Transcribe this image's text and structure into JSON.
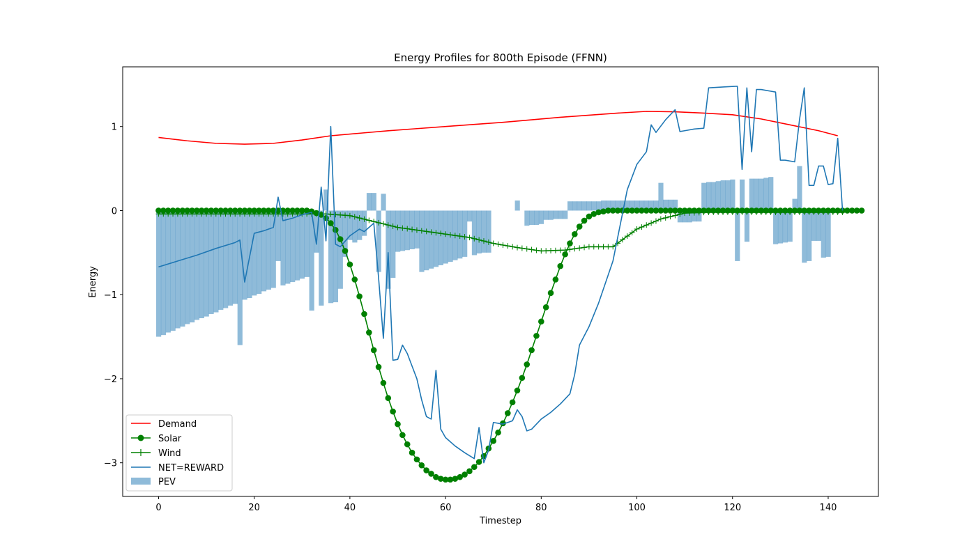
{
  "chart_data": {
    "type": "line",
    "title": "Energy Profiles for 800th Episode (FFNN)",
    "xlabel": "Timestep",
    "ylabel": "Energy",
    "xlim": [
      -7.5,
      150.5
    ],
    "ylim": [
      -3.4,
      1.71
    ],
    "xticks": [
      0,
      20,
      40,
      60,
      80,
      100,
      120,
      140
    ],
    "yticks": [
      -3,
      -2,
      -1,
      0,
      1
    ],
    "ytick_labels": [
      "−3",
      "−2",
      "−1",
      "0",
      "1"
    ],
    "grid": false,
    "legend_position": "lower left",
    "colors": {
      "Demand": "#ff0000",
      "Solar": "#008000",
      "Wind": "#008000",
      "NET=REWARD": "#1f77b4",
      "PEV": "#1f77b4"
    },
    "series": [
      {
        "name": "Demand",
        "kind": "line",
        "x": [
          0,
          6,
          12,
          18,
          24,
          30,
          36,
          42,
          48,
          54,
          60,
          66,
          72,
          78,
          84,
          90,
          96,
          102,
          108,
          114,
          120,
          126,
          132,
          138,
          142
        ],
        "values": [
          0.87,
          0.83,
          0.8,
          0.79,
          0.8,
          0.84,
          0.89,
          0.92,
          0.95,
          0.975,
          1.0,
          1.025,
          1.05,
          1.08,
          1.11,
          1.135,
          1.16,
          1.18,
          1.175,
          1.16,
          1.14,
          1.09,
          1.02,
          0.95,
          0.89
        ]
      },
      {
        "name": "Solar",
        "kind": "line-marker-circle",
        "x_start": 0,
        "x_end": 143,
        "values": [
          0,
          0,
          0,
          0,
          0,
          0,
          0,
          0,
          0,
          0,
          0,
          0,
          0,
          0,
          0,
          0,
          0,
          0,
          0,
          0,
          0,
          0,
          0,
          0,
          0,
          0,
          0,
          0,
          0,
          0,
          0,
          0,
          -0.01,
          -0.03,
          -0.05,
          -0.09,
          -0.15,
          -0.23,
          -0.34,
          -0.48,
          -0.64,
          -0.82,
          -1.02,
          -1.23,
          -1.45,
          -1.66,
          -1.86,
          -2.05,
          -2.23,
          -2.39,
          -2.54,
          -2.67,
          -2.78,
          -2.88,
          -2.96,
          -3.03,
          -3.09,
          -3.13,
          -3.17,
          -3.19,
          -3.2,
          -3.2,
          -3.19,
          -3.17,
          -3.14,
          -3.1,
          -3.05,
          -2.99,
          -2.92,
          -2.83,
          -2.74,
          -2.64,
          -2.53,
          -2.41,
          -2.28,
          -2.14,
          -1.99,
          -1.83,
          -1.66,
          -1.49,
          -1.32,
          -1.15,
          -0.98,
          -0.82,
          -0.66,
          -0.52,
          -0.39,
          -0.28,
          -0.19,
          -0.12,
          -0.07,
          -0.04,
          -0.02,
          -0.01,
          0,
          0,
          0,
          0,
          0,
          0,
          0,
          0,
          0,
          0,
          0,
          0,
          0,
          0,
          0,
          0,
          0,
          0,
          0,
          0,
          0,
          0,
          0,
          0,
          0,
          0,
          0,
          0,
          0,
          0,
          0,
          0,
          0,
          0,
          0,
          0,
          0,
          0,
          0,
          0,
          0,
          0,
          0,
          0,
          0,
          0,
          0,
          0,
          0,
          0,
          0,
          0,
          0,
          0
        ]
      },
      {
        "name": "Wind",
        "kind": "line-marker-plus",
        "x": [
          0,
          10,
          20,
          30,
          35,
          40,
          45,
          50,
          55,
          60,
          65,
          70,
          75,
          80,
          85,
          90,
          95,
          100,
          105,
          110,
          115,
          143
        ],
        "values": [
          -0.04,
          -0.04,
          -0.04,
          -0.04,
          -0.04,
          -0.06,
          -0.13,
          -0.2,
          -0.24,
          -0.28,
          -0.32,
          -0.39,
          -0.44,
          -0.48,
          -0.47,
          -0.43,
          -0.43,
          -0.22,
          -0.1,
          -0.03,
          -0.02,
          -0.02
        ]
      },
      {
        "name": "NET=REWARD",
        "kind": "line",
        "x": [
          0,
          4,
          8,
          12,
          16,
          17,
          18,
          20,
          22,
          24,
          25,
          26,
          28,
          30,
          32,
          33,
          34,
          35,
          36,
          37,
          38,
          40,
          42,
          43,
          44,
          45,
          46,
          47,
          48,
          49,
          50,
          51,
          52,
          53,
          54,
          55,
          56,
          57,
          58,
          59,
          60,
          62,
          64,
          66,
          67,
          68,
          69,
          70,
          71,
          72,
          73,
          74,
          75,
          76,
          77,
          78,
          80,
          82,
          84,
          86,
          87,
          88,
          90,
          92,
          95,
          98,
          100,
          102,
          103,
          104,
          106,
          108,
          109,
          110,
          112,
          114,
          115,
          118,
          121,
          122,
          123,
          124,
          125,
          126,
          127,
          128,
          129,
          130,
          131,
          132,
          133,
          134,
          135,
          136,
          137,
          138,
          139,
          140,
          141,
          142,
          143
        ],
        "values": [
          -0.67,
          -0.6,
          -0.53,
          -0.45,
          -0.38,
          -0.35,
          -0.85,
          -0.27,
          -0.24,
          -0.2,
          0.16,
          -0.12,
          -0.09,
          -0.05,
          -0.02,
          -0.4,
          0.28,
          -0.36,
          1.0,
          -0.4,
          -0.43,
          -0.3,
          -0.22,
          -0.25,
          -0.2,
          -0.15,
          -0.8,
          -1.52,
          -0.5,
          -1.78,
          -1.77,
          -1.6,
          -1.7,
          -1.85,
          -2.0,
          -2.25,
          -2.45,
          -2.48,
          -1.9,
          -2.6,
          -2.7,
          -2.8,
          -2.88,
          -2.95,
          -2.58,
          -3.0,
          -2.85,
          -2.52,
          -2.53,
          -2.54,
          -2.52,
          -2.5,
          -2.37,
          -2.45,
          -2.62,
          -2.6,
          -2.48,
          -2.4,
          -2.3,
          -2.18,
          -1.95,
          -1.6,
          -1.38,
          -1.1,
          -0.6,
          0.25,
          0.55,
          0.7,
          1.02,
          0.93,
          1.08,
          1.2,
          0.94,
          0.95,
          0.97,
          0.98,
          1.46,
          1.47,
          1.48,
          0.49,
          1.46,
          0.7,
          1.44,
          1.44,
          1.43,
          1.42,
          1.41,
          0.6,
          0.6,
          0.59,
          0.58,
          1.08,
          1.46,
          0.3,
          0.3,
          0.53,
          0.53,
          0.31,
          0.32,
          0.86,
          0.0
        ]
      },
      {
        "name": "PEV",
        "kind": "bar",
        "x_start": 0,
        "values": [
          -1.5,
          -1.48,
          -1.45,
          -1.43,
          -1.4,
          -1.38,
          -1.35,
          -1.33,
          -1.3,
          -1.28,
          -1.26,
          -1.23,
          -1.21,
          -1.18,
          -1.16,
          -1.13,
          -1.11,
          -1.6,
          -1.06,
          -1.04,
          -1.01,
          -0.99,
          -0.96,
          -0.94,
          -0.92,
          -0.6,
          -0.89,
          -0.87,
          -0.85,
          -0.83,
          -0.81,
          -0.79,
          -1.19,
          -0.5,
          -1.13,
          0.25,
          -1.1,
          -1.09,
          -0.93,
          -0.55,
          -0.35,
          -0.38,
          -0.35,
          -0.3,
          0.21,
          0.21,
          -0.73,
          0.2,
          -0.93,
          -0.8,
          -0.49,
          -0.48,
          -0.47,
          -0.46,
          -0.45,
          -0.73,
          -0.71,
          -0.69,
          -0.67,
          -0.65,
          -0.63,
          -0.61,
          -0.59,
          -0.57,
          -0.55,
          -0.13,
          -0.53,
          -0.51,
          -0.5,
          -0.5,
          0.0,
          0.0,
          0.0,
          0.0,
          0.0,
          0.12,
          0.0,
          -0.18,
          -0.17,
          -0.17,
          -0.16,
          -0.11,
          -0.11,
          -0.1,
          -0.1,
          -0.1,
          0.11,
          0.11,
          0.11,
          0.11,
          0.11,
          0.11,
          0.11,
          0.12,
          0.12,
          0.12,
          0.12,
          0.12,
          0.12,
          0.12,
          0.12,
          0.12,
          0.12,
          0.12,
          0.12,
          0.33,
          0.13,
          0.13,
          0.13,
          -0.14,
          -0.14,
          -0.14,
          -0.13,
          -0.13,
          0.33,
          0.34,
          0.34,
          0.35,
          0.36,
          0.36,
          0.37,
          -0.6,
          0.37,
          -0.37,
          0.38,
          0.38,
          0.38,
          0.39,
          0.4,
          -0.4,
          -0.39,
          -0.38,
          -0.37,
          0.14,
          0.53,
          -0.62,
          -0.6,
          -0.36,
          -0.36,
          -0.56,
          -0.55,
          0.0
        ]
      }
    ]
  }
}
